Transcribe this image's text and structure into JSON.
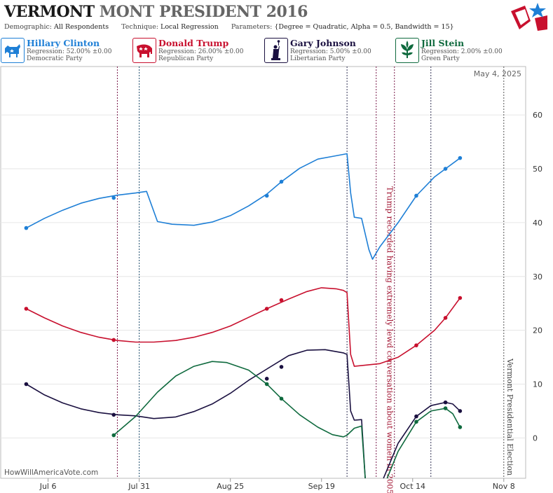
{
  "header": {
    "title_state": "VERMONT",
    "title_rest": "MONT PRESIDENT 2016",
    "demographic_label": "Demographic:",
    "demographic_value": "All Respondents",
    "technique_label": "Technique:",
    "technique_value": "Local Regression",
    "parameters_label": "Parameters:",
    "parameters_value": "{Degree = Quadratic, Alpha = 0.5, Bandwidth = 15}"
  },
  "legend": [
    {
      "name": "Hillary Clinton",
      "regression": "Regression: 52.00% ±0.00",
      "party": "Democratic Party",
      "color": "#1e7fd6",
      "icon": "donkey-icon"
    },
    {
      "name": "Donald Trump",
      "regression": "Regression: 26.00% ±0.00",
      "party": "Republican Party",
      "color": "#c8102e",
      "icon": "elephant-icon"
    },
    {
      "name": "Gary Johnson",
      "regression": "Regression: 5.00% ±0.00",
      "party": "Libertarian Party",
      "color": "#1a1040",
      "icon": "statue-of-liberty-icon"
    },
    {
      "name": "Jill Stein",
      "regression": "Regression: 2.00% ±0.00",
      "party": "Green Party",
      "color": "#0f6a3e",
      "icon": "leaf-icon"
    }
  ],
  "watermark": "HowWillAmericaVote.com",
  "chart_data": {
    "type": "line",
    "date_label": "May 4, 2025",
    "x_range": [
      "2016-06-23",
      "2016-11-14"
    ],
    "ylim": [
      -7.5,
      69
    ],
    "yticks": [
      0,
      10,
      20,
      30,
      40,
      50,
      60
    ],
    "xticks": [
      {
        "label": "Jul 6",
        "date": "2016-07-06"
      },
      {
        "label": "Jul 31",
        "date": "2016-07-31"
      },
      {
        "label": "Aug 25",
        "date": "2016-08-25"
      },
      {
        "label": "Sep 19",
        "date": "2016-09-19"
      },
      {
        "label": "Oct 14",
        "date": "2016-10-14"
      },
      {
        "label": "Nov 8",
        "date": "2016-11-08"
      }
    ],
    "vlines": [
      {
        "date": "2016-07-25",
        "color": "#7a1a4a"
      },
      {
        "date": "2016-07-31",
        "color": "#1a4a6a"
      },
      {
        "date": "2016-09-26",
        "color": "#333355"
      },
      {
        "date": "2016-10-04",
        "color": "#7a1a4a"
      },
      {
        "date": "2016-10-09",
        "color": "#7a1a4a"
      },
      {
        "date": "2016-10-19",
        "color": "#333355"
      },
      {
        "date": "2016-11-08",
        "color": "#555555"
      }
    ],
    "annotations": [
      {
        "text": "Trump recorded having extremely lewd conversation about women in 2005",
        "date": "2016-10-07",
        "color": "#a0102e"
      },
      {
        "text": "Vermont Presidential Election",
        "date": "2016-11-09",
        "color": "#444444"
      }
    ],
    "series": [
      {
        "name": "Hillary Clinton",
        "color": "#1e7fd6",
        "points": [
          [
            "2016-06-30",
            39.0
          ],
          [
            "2016-07-05",
            40.8
          ],
          [
            "2016-07-10",
            42.3
          ],
          [
            "2016-07-15",
            43.6
          ],
          [
            "2016-07-20",
            44.5
          ],
          [
            "2016-07-25",
            45.1
          ],
          [
            "2016-07-30",
            45.5
          ],
          [
            "2016-08-02",
            45.8
          ],
          [
            "2016-08-05",
            40.2
          ],
          [
            "2016-08-09",
            39.7
          ],
          [
            "2016-08-15",
            39.5
          ],
          [
            "2016-08-20",
            40.1
          ],
          [
            "2016-08-25",
            41.3
          ],
          [
            "2016-08-30",
            43.1
          ],
          [
            "2016-09-04",
            45.3
          ],
          [
            "2016-09-08",
            47.6
          ],
          [
            "2016-09-13",
            50.1
          ],
          [
            "2016-09-18",
            51.8
          ],
          [
            "2016-09-22",
            52.3
          ],
          [
            "2016-09-26",
            52.8
          ],
          [
            "2016-09-27",
            45.5
          ],
          [
            "2016-09-28",
            41.0
          ],
          [
            "2016-09-30",
            40.8
          ],
          [
            "2016-10-02",
            35.0
          ],
          [
            "2016-10-03",
            33.2
          ],
          [
            "2016-10-05",
            35.5
          ],
          [
            "2016-10-10",
            40.0
          ],
          [
            "2016-10-15",
            45.0
          ],
          [
            "2016-10-20",
            48.5
          ],
          [
            "2016-10-23",
            50.0
          ],
          [
            "2016-10-27",
            52.0
          ]
        ],
        "markers": [
          [
            "2016-06-30",
            39.0
          ],
          [
            "2016-07-24",
            44.6
          ],
          [
            "2016-09-04",
            45.0
          ],
          [
            "2016-09-08",
            47.6
          ],
          [
            "2016-10-15",
            45.0
          ],
          [
            "2016-10-23",
            50.0
          ],
          [
            "2016-10-27",
            52.0
          ]
        ]
      },
      {
        "name": "Donald Trump",
        "color": "#c8102e",
        "points": [
          [
            "2016-06-30",
            24.0
          ],
          [
            "2016-07-05",
            22.3
          ],
          [
            "2016-07-10",
            20.8
          ],
          [
            "2016-07-15",
            19.6
          ],
          [
            "2016-07-20",
            18.7
          ],
          [
            "2016-07-25",
            18.1
          ],
          [
            "2016-07-30",
            17.8
          ],
          [
            "2016-08-04",
            17.8
          ],
          [
            "2016-08-10",
            18.1
          ],
          [
            "2016-08-15",
            18.7
          ],
          [
            "2016-08-20",
            19.6
          ],
          [
            "2016-08-25",
            20.8
          ],
          [
            "2016-08-30",
            22.4
          ],
          [
            "2016-09-04",
            24.0
          ],
          [
            "2016-09-10",
            25.8
          ],
          [
            "2016-09-15",
            27.2
          ],
          [
            "2016-09-19",
            27.9
          ],
          [
            "2016-09-23",
            27.7
          ],
          [
            "2016-09-25",
            27.4
          ],
          [
            "2016-09-26",
            27.0
          ],
          [
            "2016-09-27",
            15.5
          ],
          [
            "2016-09-28",
            13.3
          ],
          [
            "2016-10-05",
            13.8
          ],
          [
            "2016-10-10",
            15.0
          ],
          [
            "2016-10-15",
            17.2
          ],
          [
            "2016-10-20",
            20.0
          ],
          [
            "2016-10-23",
            22.3
          ],
          [
            "2016-10-27",
            26.0
          ]
        ],
        "markers": [
          [
            "2016-06-30",
            24.0
          ],
          [
            "2016-07-24",
            18.2
          ],
          [
            "2016-09-04",
            24.0
          ],
          [
            "2016-09-08",
            25.6
          ],
          [
            "2016-10-15",
            17.2
          ],
          [
            "2016-10-23",
            22.3
          ],
          [
            "2016-10-27",
            26.0
          ]
        ]
      },
      {
        "name": "Gary Johnson",
        "color": "#1a1040",
        "points": [
          [
            "2016-06-30",
            10.0
          ],
          [
            "2016-07-05",
            8.0
          ],
          [
            "2016-07-10",
            6.5
          ],
          [
            "2016-07-15",
            5.4
          ],
          [
            "2016-07-20",
            4.7
          ],
          [
            "2016-07-25",
            4.3
          ],
          [
            "2016-07-30",
            4.1
          ],
          [
            "2016-08-04",
            3.6
          ],
          [
            "2016-08-10",
            3.9
          ],
          [
            "2016-08-15",
            4.9
          ],
          [
            "2016-08-20",
            6.3
          ],
          [
            "2016-08-25",
            8.3
          ],
          [
            "2016-08-30",
            10.7
          ],
          [
            "2016-09-04",
            12.8
          ],
          [
            "2016-09-10",
            15.3
          ],
          [
            "2016-09-15",
            16.3
          ],
          [
            "2016-09-20",
            16.4
          ],
          [
            "2016-09-25",
            15.8
          ],
          [
            "2016-09-26",
            15.5
          ],
          [
            "2016-09-27",
            5.0
          ],
          [
            "2016-09-28",
            3.3
          ],
          [
            "2016-09-30",
            3.4
          ],
          [
            "2016-10-01",
            -7.5
          ]
        ],
        "points2": [
          [
            "2016-10-06",
            -7.5
          ],
          [
            "2016-10-10",
            -1.0
          ],
          [
            "2016-10-15",
            4.0
          ],
          [
            "2016-10-19",
            6.0
          ],
          [
            "2016-10-23",
            6.6
          ],
          [
            "2016-10-25",
            6.3
          ],
          [
            "2016-10-27",
            5.0
          ]
        ],
        "markers": [
          [
            "2016-06-30",
            10.0
          ],
          [
            "2016-07-24",
            4.3
          ],
          [
            "2016-09-04",
            11.0
          ],
          [
            "2016-09-08",
            13.2
          ],
          [
            "2016-10-15",
            4.0
          ],
          [
            "2016-10-23",
            6.6
          ],
          [
            "2016-10-27",
            5.0
          ]
        ]
      },
      {
        "name": "Jill Stein",
        "color": "#0f6a3e",
        "points": [
          [
            "2016-07-24",
            0.5
          ],
          [
            "2016-07-30",
            4.0
          ],
          [
            "2016-08-05",
            8.5
          ],
          [
            "2016-08-10",
            11.5
          ],
          [
            "2016-08-15",
            13.3
          ],
          [
            "2016-08-20",
            14.2
          ],
          [
            "2016-08-24",
            14.0
          ],
          [
            "2016-08-30",
            12.6
          ],
          [
            "2016-09-04",
            10.0
          ],
          [
            "2016-09-08",
            7.3
          ],
          [
            "2016-09-13",
            4.3
          ],
          [
            "2016-09-18",
            2.0
          ],
          [
            "2016-09-22",
            0.6
          ],
          [
            "2016-09-25",
            0.2
          ],
          [
            "2016-09-26",
            0.5
          ],
          [
            "2016-09-28",
            1.8
          ],
          [
            "2016-09-30",
            2.2
          ],
          [
            "2016-10-01",
            -7.5
          ]
        ],
        "points2": [
          [
            "2016-10-07",
            -7.5
          ],
          [
            "2016-10-10",
            -2.5
          ],
          [
            "2016-10-15",
            3.0
          ],
          [
            "2016-10-19",
            5.0
          ],
          [
            "2016-10-23",
            5.5
          ],
          [
            "2016-10-25",
            4.5
          ],
          [
            "2016-10-27",
            2.0
          ]
        ],
        "markers": [
          [
            "2016-07-24",
            0.5
          ],
          [
            "2016-09-04",
            10.0
          ],
          [
            "2016-09-08",
            7.3
          ],
          [
            "2016-10-15",
            3.0
          ],
          [
            "2016-10-23",
            5.5
          ],
          [
            "2016-10-27",
            2.0
          ]
        ]
      }
    ]
  }
}
